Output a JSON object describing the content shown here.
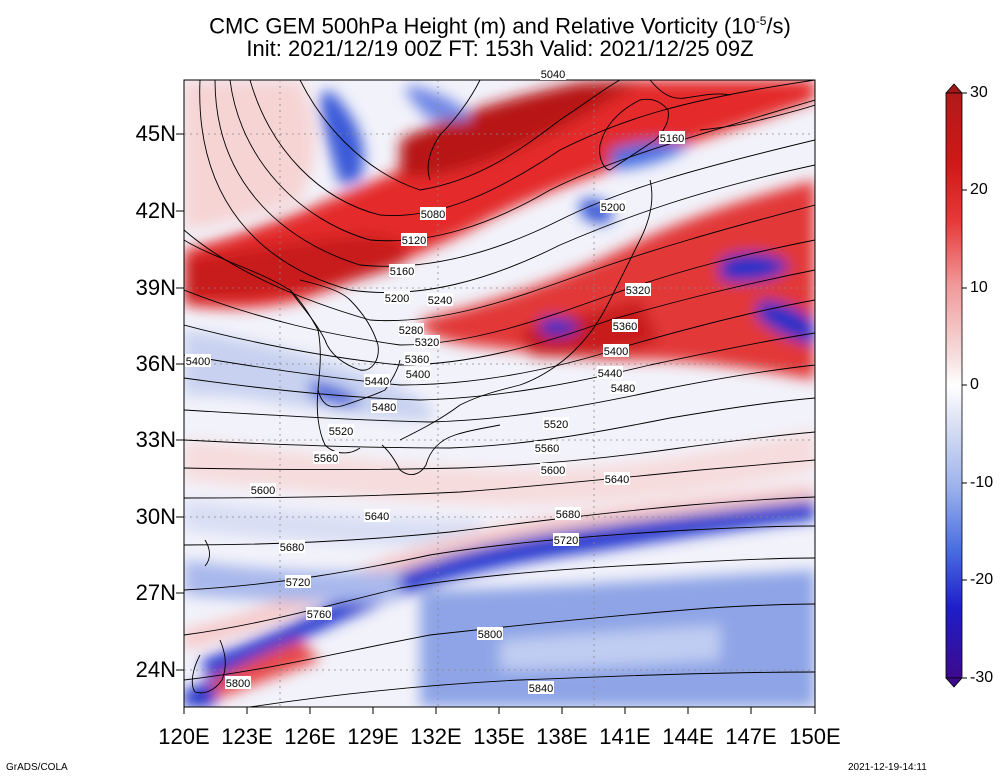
{
  "title": {
    "line1": "CMC GEM 500hPa Height (m) and Relative Vorticity (10",
    "line1_exp": "-5",
    "line1_end": "/s)",
    "line2": "Init: 2021/12/19 00Z  FT: 153h  Valid: 2021/12/25 09Z"
  },
  "lat_labels": [
    "45N",
    "42N",
    "39N",
    "36N",
    "33N",
    "30N",
    "27N",
    "24N"
  ],
  "lon_labels": [
    "120E",
    "123E",
    "126E",
    "129E",
    "132E",
    "135E",
    "138E",
    "141E",
    "144E",
    "147E",
    "150E"
  ],
  "colorbar": {
    "labels": [
      "30",
      "20",
      "10",
      "0",
      "-10",
      "-20",
      "-30"
    ],
    "colors": [
      "#3c0a8c",
      "#1e1ec8",
      "#4a6ee0",
      "#9fb4ec",
      "#e4e8f6",
      "#ffffff",
      "#f6dede",
      "#f09a9a",
      "#e63a3a",
      "#d01818",
      "#b01a1a"
    ]
  },
  "contours": [
    {
      "label": "5040"
    },
    {
      "label": "5080"
    },
    {
      "label": "5120"
    },
    {
      "label": "5160"
    },
    {
      "label": "5160"
    },
    {
      "label": "5200"
    },
    {
      "label": "5200"
    },
    {
      "label": "5240"
    },
    {
      "label": "5280"
    },
    {
      "label": "5320"
    },
    {
      "label": "5320"
    },
    {
      "label": "5360"
    },
    {
      "label": "5360"
    },
    {
      "label": "5400"
    },
    {
      "label": "5400"
    },
    {
      "label": "5400"
    },
    {
      "label": "5440"
    },
    {
      "label": "5440"
    },
    {
      "label": "5480"
    },
    {
      "label": "5480"
    },
    {
      "label": "5520"
    },
    {
      "label": "5520"
    },
    {
      "label": "5560"
    },
    {
      "label": "5560"
    },
    {
      "label": "5600"
    },
    {
      "label": "5600"
    },
    {
      "label": "5640"
    },
    {
      "label": "5640"
    },
    {
      "label": "5680"
    },
    {
      "label": "5680"
    },
    {
      "label": "5720"
    },
    {
      "label": "5720"
    },
    {
      "label": "5760"
    },
    {
      "label": "5800"
    },
    {
      "label": "5800"
    },
    {
      "label": "5840"
    }
  ],
  "footer": {
    "left": "GrADS/COLA",
    "right": "2021-12-19-14:11"
  }
}
